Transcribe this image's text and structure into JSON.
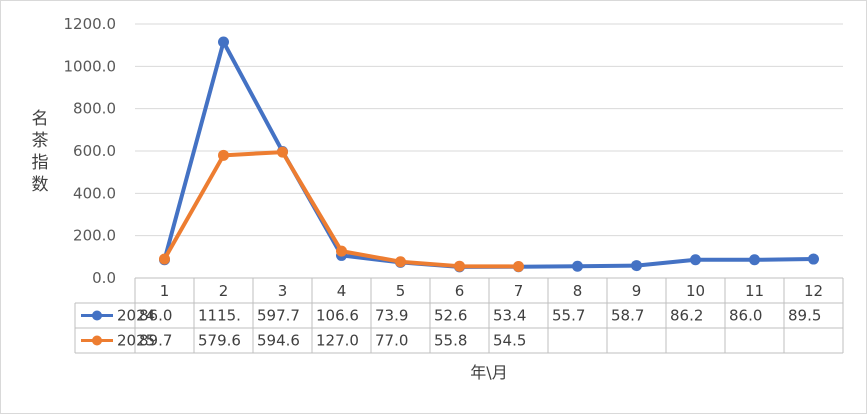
{
  "chart_data": {
    "type": "line",
    "title": "",
    "ylabel": "名茶指数",
    "xlabel": "年\\月",
    "ylim": [
      0,
      1200
    ],
    "yticks": [
      0,
      200,
      400,
      600,
      800,
      1000,
      1200
    ],
    "ytick_labels": [
      "0.0",
      "200.0",
      "400.0",
      "600.0",
      "800.0",
      "1000.0",
      "1200.0"
    ],
    "grid": true,
    "legend": "data-table-left",
    "categories": [
      "1",
      "2",
      "3",
      "4",
      "5",
      "6",
      "7",
      "8",
      "9",
      "10",
      "11",
      "12"
    ],
    "series": [
      {
        "name": "2024",
        "color": "#4472c4",
        "values": [
          86.0,
          1115.0,
          597.7,
          106.6,
          73.9,
          52.6,
          53.4,
          55.7,
          58.7,
          86.2,
          86.0,
          89.5
        ],
        "labels": [
          "86.0",
          "1115.",
          "597.7",
          "106.6",
          "73.9",
          "52.6",
          "53.4",
          "55.7",
          "58.7",
          "86.2",
          "86.0",
          "89.5"
        ]
      },
      {
        "name": "2025",
        "color": "#ed7d31",
        "values": [
          89.7,
          579.6,
          594.6,
          127.0,
          77.0,
          55.8,
          54.5,
          null,
          null,
          null,
          null,
          null
        ],
        "labels": [
          "89.7",
          "579.6",
          "594.6",
          "127.0",
          "77.0",
          "55.8",
          "54.5",
          "",
          "",
          "",
          "",
          ""
        ]
      }
    ]
  }
}
